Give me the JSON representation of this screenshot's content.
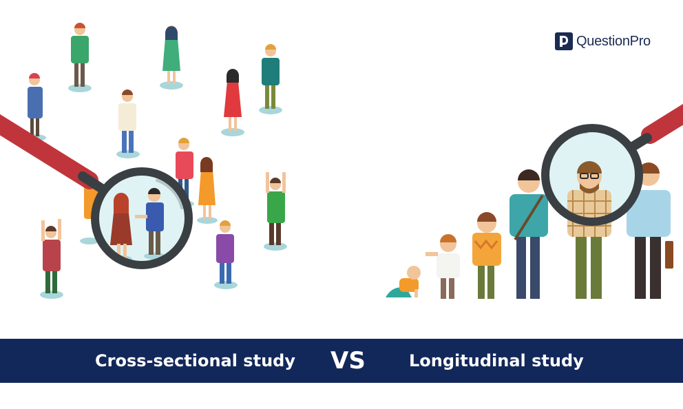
{
  "brand": {
    "logo_text": "QuestionPro",
    "logo_icon": "questionpro-p-logo-icon"
  },
  "banner": {
    "left_label": "Cross-sectional study",
    "vs_label": "VS",
    "right_label": "Longitudinal study"
  },
  "colors": {
    "banner_bg": "#13285a",
    "banner_text": "#ffffff",
    "magnifier_handle": "#c0353c",
    "magnifier_frame": "#3a3f43",
    "lens_fill": "#dff3f4",
    "shadow_teal": "#a9d6da"
  }
}
